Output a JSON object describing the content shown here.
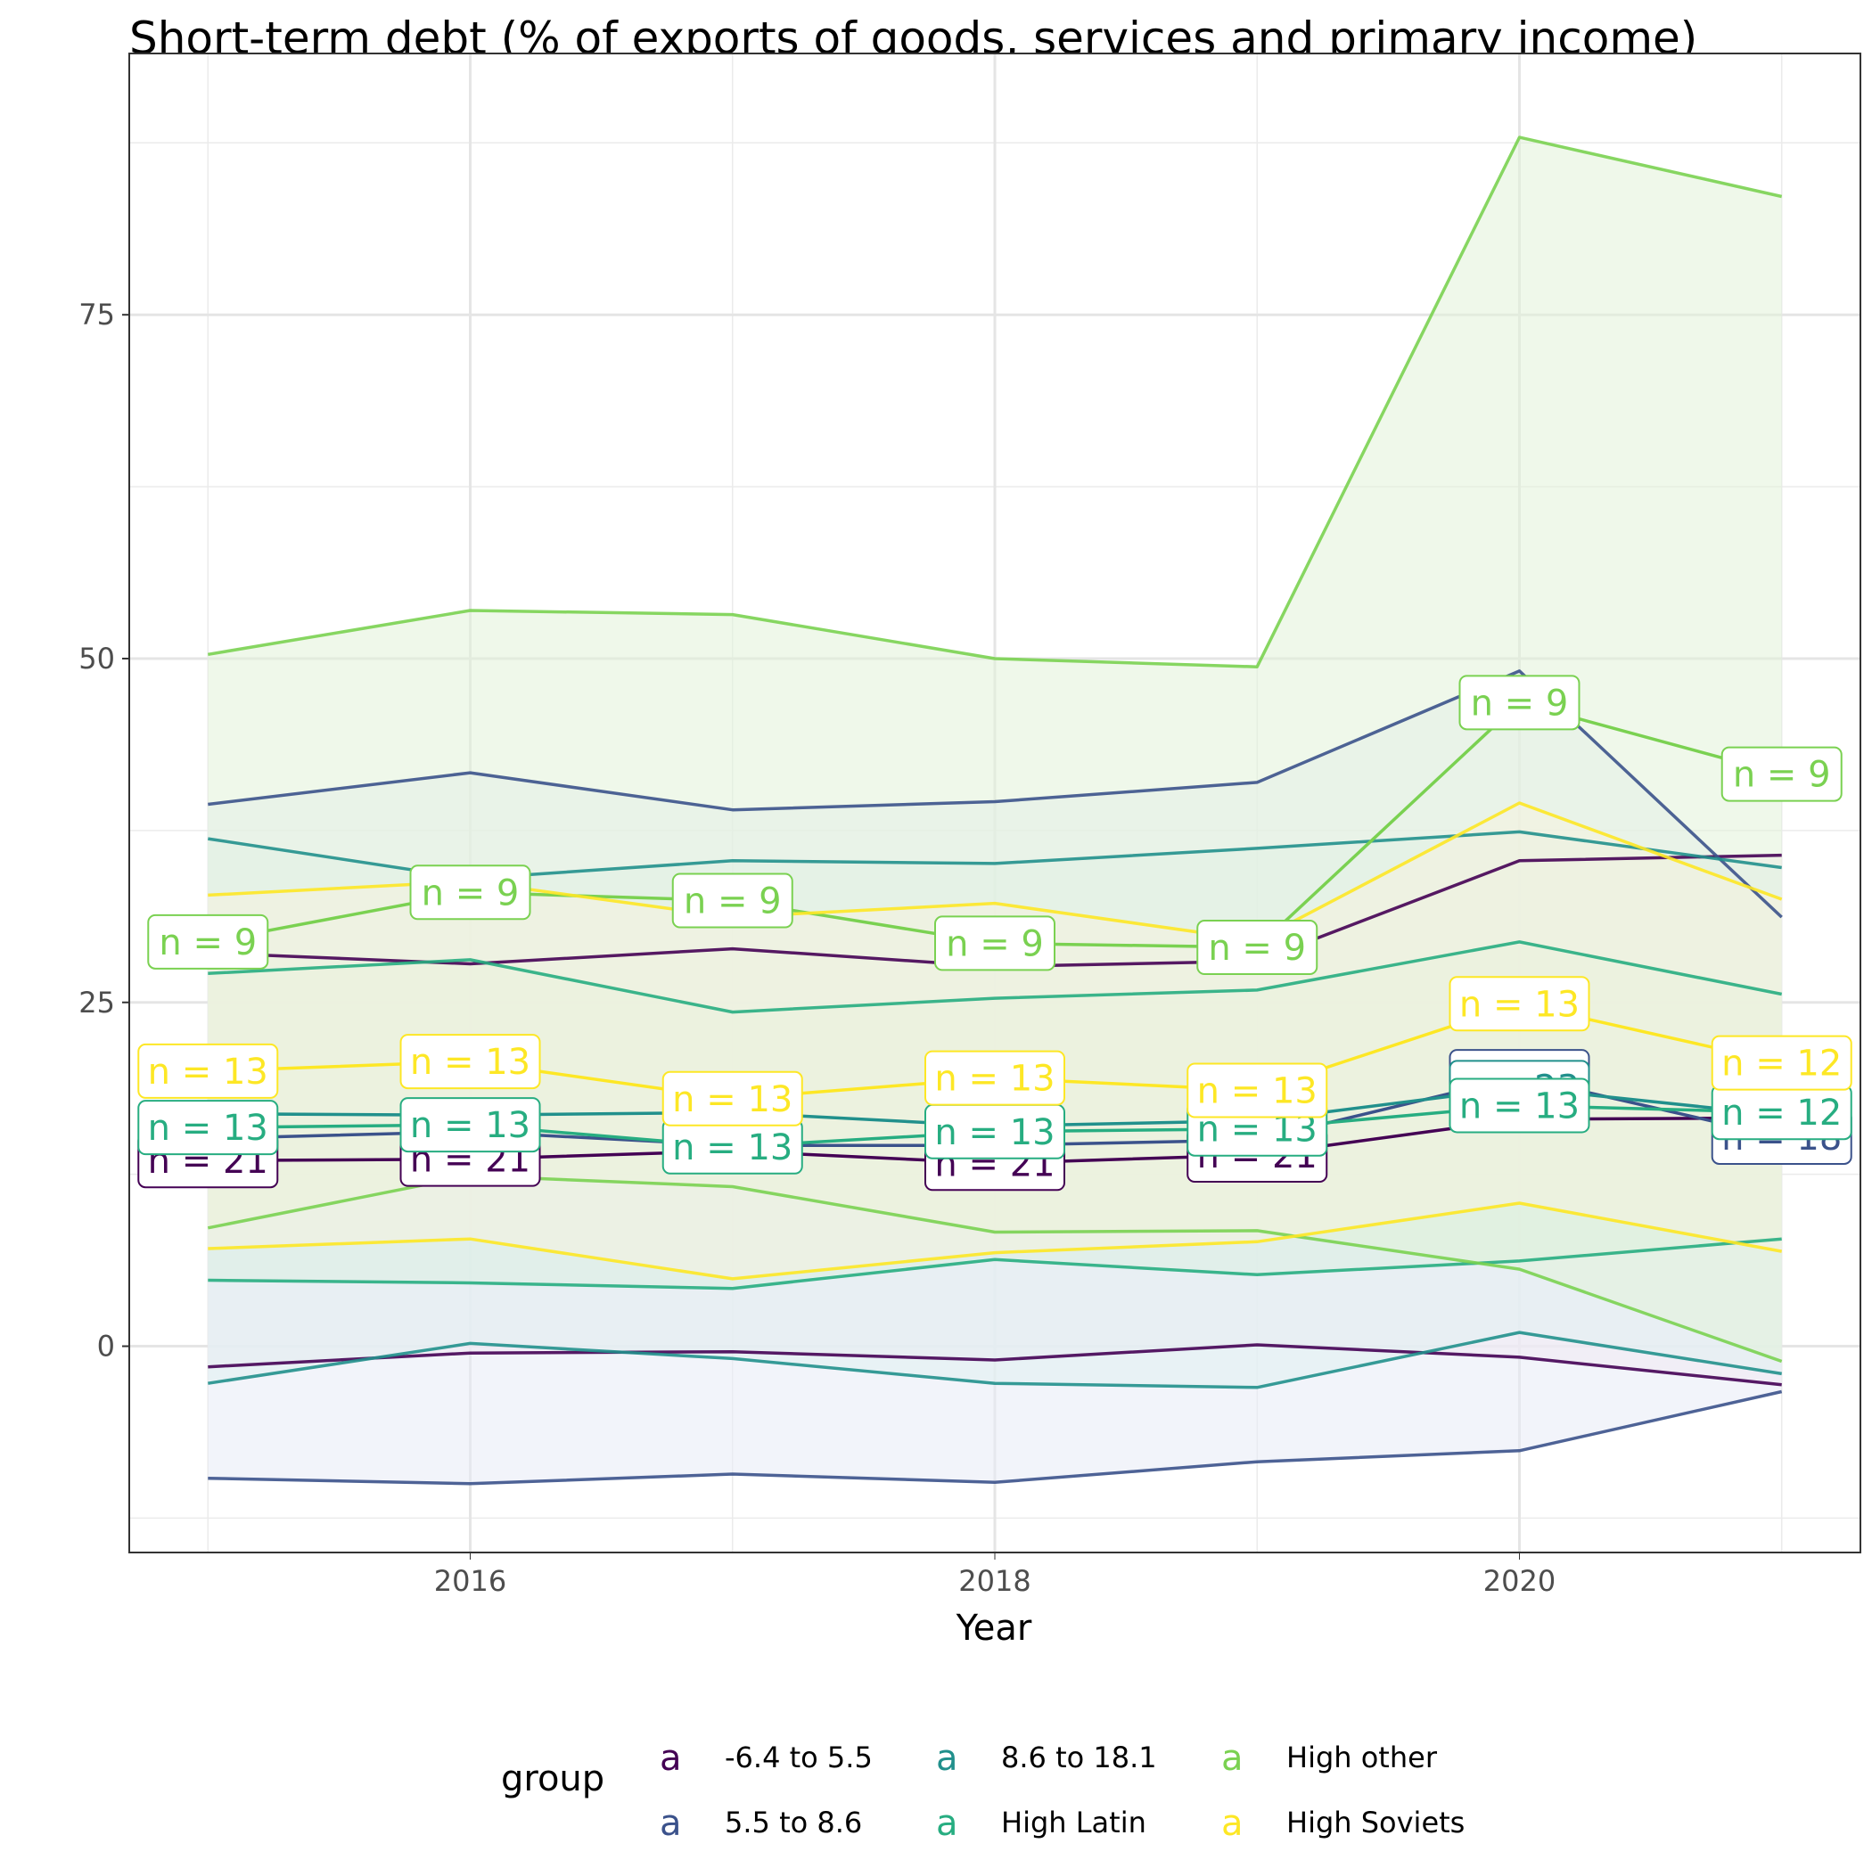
{
  "chart_data": {
    "type": "line",
    "title": "Short-term debt (% of exports of goods, services and primary income)",
    "xlabel": "Year",
    "ylabel": "",
    "xlim": [
      2014.7,
      2021.3
    ],
    "ylim": [
      -15,
      94
    ],
    "x_ticks": [
      2016,
      2018,
      2020
    ],
    "y_ticks": [
      0,
      25,
      50,
      75
    ],
    "grid": true,
    "x": [
      2015,
      2016,
      2017,
      2018,
      2019,
      2020,
      2021
    ],
    "legend": {
      "title": "group",
      "position": "bottom",
      "key_glyph": "a"
    },
    "series": [
      {
        "name": "-6.4 to 5.5",
        "color": "#440154",
        "band_fill": "#fbe7ef",
        "lower": [
          -1.5,
          -0.5,
          -0.4,
          -1.0,
          0.1,
          -0.8,
          -2.8
        ],
        "mean": [
          13.5,
          13.6,
          14.2,
          13.3,
          13.9,
          16.5,
          16.6
        ],
        "upper": [
          28.6,
          27.8,
          28.9,
          27.6,
          28.0,
          35.3,
          35.7
        ],
        "labels": [
          "n = 21",
          "n = 21",
          "",
          "n = 21",
          "n = 21",
          "",
          ""
        ]
      },
      {
        "name": "5.5 to 8.6",
        "color": "#3b528b",
        "band_fill": "#e7ebf6",
        "lower": [
          -9.6,
          -10.0,
          -9.3,
          -9.9,
          -8.4,
          -7.6,
          -3.3
        ],
        "mean": [
          15.1,
          15.6,
          14.6,
          14.6,
          15.0,
          19.6,
          15.2
        ],
        "upper": [
          39.4,
          41.7,
          39.0,
          39.6,
          41.0,
          49.1,
          31.2
        ],
        "labels": [
          "",
          "",
          "",
          "",
          "",
          "n = 23",
          "n = 18"
        ]
      },
      {
        "name": "8.6 to 18.1",
        "color": "#21908c",
        "band_fill": "#e0f1f0",
        "lower": [
          -2.7,
          0.2,
          -0.9,
          -2.7,
          -3.0,
          1.0,
          -2.0
        ],
        "mean": [
          16.9,
          16.8,
          17.0,
          16.0,
          16.4,
          18.8,
          16.8
        ],
        "upper": [
          36.9,
          34.0,
          35.3,
          35.1,
          36.2,
          37.4,
          34.8
        ],
        "labels": [
          "",
          "",
          "",
          "",
          "",
          "n = 23",
          ""
        ]
      },
      {
        "name": "High Latin",
        "color": "#27ad81",
        "band_fill": "#dbefe2",
        "lower": [
          4.8,
          4.6,
          4.2,
          6.3,
          5.2,
          6.2,
          7.8
        ],
        "mean": [
          15.9,
          16.1,
          14.5,
          15.6,
          15.8,
          17.5,
          17.0
        ],
        "upper": [
          27.1,
          28.1,
          24.3,
          25.3,
          25.9,
          29.4,
          25.6
        ],
        "labels": [
          "n = 13",
          "n = 13",
          "n = 13",
          "n = 13",
          "n = 13",
          "n = 13",
          "n = 12"
        ]
      },
      {
        "name": "High other",
        "color": "#7ad151",
        "band_fill": "#e2f2d8",
        "lower": [
          8.6,
          12.4,
          11.6,
          8.3,
          8.4,
          5.6,
          -1.1
        ],
        "mean": [
          29.4,
          33.0,
          32.4,
          29.3,
          29.0,
          46.8,
          41.6
        ],
        "upper": [
          50.3,
          53.5,
          53.2,
          50.0,
          49.4,
          87.9,
          83.6
        ],
        "labels": [
          "n = 9",
          "n = 9",
          "n = 9",
          "n = 9",
          "n = 9",
          "n = 9",
          "n = 9"
        ]
      },
      {
        "name": "High Soviets",
        "color": "#fde725",
        "band_fill": "#f6f3df",
        "lower": [
          7.1,
          7.8,
          4.9,
          6.8,
          7.6,
          10.4,
          6.9
        ],
        "mean": [
          20.0,
          20.7,
          18.0,
          19.5,
          18.6,
          24.9,
          20.6
        ],
        "upper": [
          32.8,
          33.8,
          31.2,
          32.2,
          29.5,
          39.5,
          32.5
        ],
        "labels": [
          "n = 13",
          "n = 13",
          "n = 13",
          "n = 13",
          "n = 13",
          "n = 13",
          "n = 12"
        ]
      }
    ]
  }
}
